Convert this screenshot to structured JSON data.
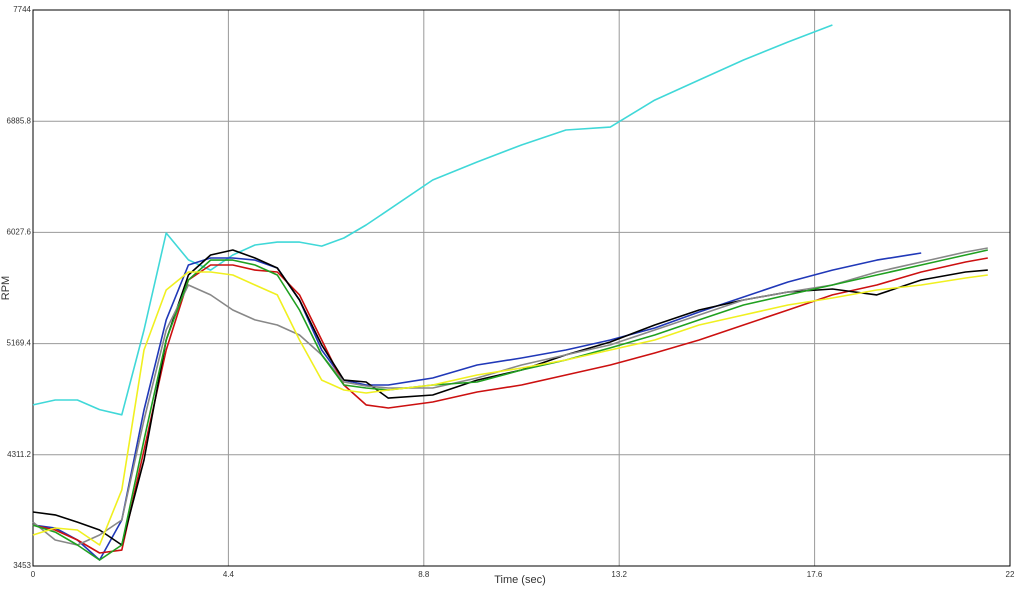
{
  "chart_data": {
    "type": "line",
    "xlabel": "Time (sec)",
    "ylabel": "RPM",
    "x": [
      0,
      0.5,
      1,
      1.5,
      2,
      2.5,
      3,
      3.5,
      4,
      4.5,
      5,
      5.5,
      6,
      6.5,
      7,
      7.5,
      8,
      9,
      10,
      11,
      12,
      13,
      14,
      15,
      16,
      17,
      18,
      19,
      20,
      21,
      21.5
    ],
    "series": [
      {
        "color": "#40d8d8",
        "values": [
          4696,
          4734,
          4734,
          4660,
          4620,
          5274,
          6023,
          5815,
          5737,
          5853,
          5930,
          5953,
          5953,
          5922,
          5984,
          6085,
          6200,
          6432,
          6571,
          6702,
          6818,
          6840,
          7049,
          7204,
          7358,
          7497,
          7628,
          null,
          null,
          null,
          null
        ]
      },
      {
        "color": "#2038b8",
        "values": [
          3769,
          3746,
          3654,
          3499,
          3808,
          4657,
          5352,
          5776,
          5830,
          5830,
          5814,
          5753,
          5506,
          5120,
          4888,
          4850,
          4850,
          4904,
          5004,
          5058,
          5120,
          5197,
          5290,
          5413,
          5529,
          5645,
          5737,
          5814,
          5869,
          null,
          null
        ]
      },
      {
        "color": "#cc1010",
        "values": [
          3769,
          3731,
          3654,
          3553,
          3576,
          4348,
          5120,
          5660,
          5776,
          5776,
          5737,
          5722,
          5545,
          5197,
          4850,
          4696,
          4672,
          4719,
          4796,
          4850,
          4927,
          5004,
          5097,
          5197,
          5313,
          5429,
          5545,
          5622,
          5722,
          5799,
          5830
        ]
      },
      {
        "color": "#000000",
        "values": [
          3870,
          3847,
          3792,
          3731,
          3615,
          4271,
          5197,
          5699,
          5853,
          5892,
          5830,
          5753,
          5506,
          5159,
          4888,
          4873,
          4749,
          4773,
          4888,
          4966,
          5082,
          5182,
          5313,
          5429,
          5506,
          5568,
          5591,
          5545,
          5660,
          5722,
          5737
        ]
      },
      {
        "color": "#888888",
        "values": [
          3792,
          3654,
          3615,
          3692,
          3808,
          4580,
          5274,
          5622,
          5545,
          5429,
          5352,
          5313,
          5236,
          5082,
          4873,
          4842,
          4827,
          4827,
          4904,
          5004,
          5082,
          5159,
          5274,
          5390,
          5506,
          5568,
          5622,
          5722,
          5799,
          5876,
          5907
        ]
      },
      {
        "color": "#20a020",
        "values": [
          3769,
          3715,
          3615,
          3499,
          3615,
          4426,
          5197,
          5660,
          5814,
          5814,
          5776,
          5699,
          5429,
          5082,
          4850,
          4827,
          4811,
          4850,
          4873,
          4966,
          5043,
          5136,
          5236,
          5352,
          5467,
          5545,
          5622,
          5699,
          5776,
          5853,
          5892
        ]
      },
      {
        "color": "#f0f020",
        "values": [
          3692,
          3746,
          3731,
          3615,
          4040,
          5120,
          5583,
          5722,
          5722,
          5699,
          5622,
          5545,
          5197,
          4888,
          4811,
          4788,
          4811,
          4850,
          4927,
          4981,
          5043,
          5120,
          5197,
          5313,
          5390,
          5467,
          5521,
          5583,
          5622,
          5676,
          5699
        ]
      }
    ],
    "xlim": [
      0,
      22
    ],
    "xticks": [
      0,
      4.4,
      8.8,
      13.2,
      17.6,
      22
    ],
    "ylim": [
      3453,
      7744
    ],
    "yticks": [
      3453,
      4311.2,
      5169.4,
      6027.6,
      6885.8,
      7744
    ],
    "grid": true
  }
}
